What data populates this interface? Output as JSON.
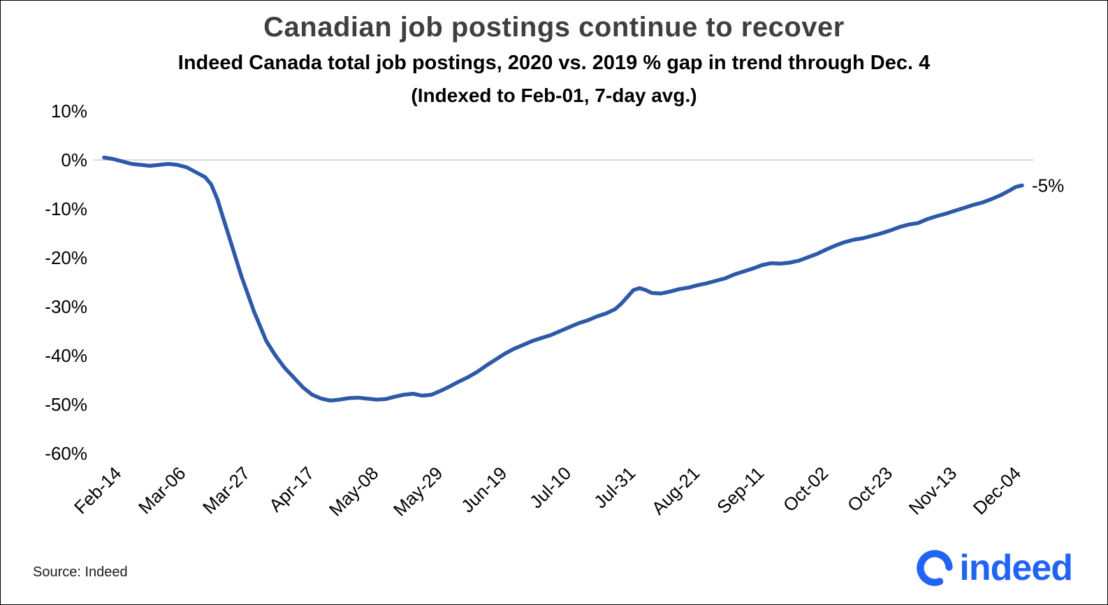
{
  "chart_data": {
    "type": "line",
    "title": "Canadian job postings continue to recover",
    "subtitle": "Indeed Canada total job postings, 2020 vs. 2019 % gap in trend through Dec. 4",
    "subtitle2": "(Indexed to Feb-01, 7-day avg.)",
    "xlabel": "",
    "ylabel": "",
    "ylim": [
      -60,
      10
    ],
    "grid": "zero-line-only",
    "legend": "none",
    "y_tick_labels": [
      "10%",
      "0%",
      "-10%",
      "-20%",
      "-30%",
      "-40%",
      "-50%",
      "-60%"
    ],
    "y_tick_values": [
      10,
      0,
      -10,
      -20,
      -30,
      -40,
      -50,
      -60
    ],
    "x_tick_labels": [
      "Feb-14",
      "Mar-06",
      "Mar-27",
      "Apr-17",
      "May-08",
      "May-29",
      "Jun-19",
      "Jul-10",
      "Jul-31",
      "Aug-21",
      "Sep-11",
      "Oct-02",
      "Oct-23",
      "Nov-13",
      "Dec-04"
    ],
    "x_tick_days": [
      13,
      34,
      55,
      76,
      97,
      118,
      139,
      160,
      181,
      202,
      223,
      244,
      265,
      286,
      307
    ],
    "x_unit": "days since Feb-01",
    "end_label": "-5%",
    "line_color": "#2d59a8",
    "zero_line_color": "#d9d9d9",
    "series": [
      {
        "name": "Total job postings, 2020 vs. 2019 % gap in trend, 7-day avg.",
        "points": [
          [
            7,
            0.5
          ],
          [
            10,
            0.2
          ],
          [
            13,
            -0.3
          ],
          [
            16,
            -0.8
          ],
          [
            19,
            -1.0
          ],
          [
            22,
            -1.2
          ],
          [
            25,
            -1.0
          ],
          [
            28,
            -0.8
          ],
          [
            31,
            -1.0
          ],
          [
            34,
            -1.5
          ],
          [
            37,
            -2.5
          ],
          [
            40,
            -3.5
          ],
          [
            42,
            -5
          ],
          [
            44,
            -8
          ],
          [
            46,
            -12
          ],
          [
            48,
            -16
          ],
          [
            50,
            -20
          ],
          [
            52,
            -24
          ],
          [
            54,
            -27.5
          ],
          [
            56,
            -31
          ],
          [
            58,
            -34
          ],
          [
            60,
            -37
          ],
          [
            63,
            -40
          ],
          [
            66,
            -42.5
          ],
          [
            69,
            -44.5
          ],
          [
            72,
            -46.5
          ],
          [
            75,
            -48
          ],
          [
            78,
            -48.8
          ],
          [
            81,
            -49.2
          ],
          [
            84,
            -49
          ],
          [
            87,
            -48.7
          ],
          [
            90,
            -48.6
          ],
          [
            93,
            -48.8
          ],
          [
            96,
            -49
          ],
          [
            99,
            -48.9
          ],
          [
            102,
            -48.4
          ],
          [
            105,
            -48
          ],
          [
            108,
            -47.8
          ],
          [
            111,
            -48.2
          ],
          [
            114,
            -48
          ],
          [
            117,
            -47.2
          ],
          [
            120,
            -46.3
          ],
          [
            123,
            -45.3
          ],
          [
            126,
            -44.4
          ],
          [
            129,
            -43.3
          ],
          [
            132,
            -42
          ],
          [
            135,
            -40.8
          ],
          [
            138,
            -39.6
          ],
          [
            141,
            -38.6
          ],
          [
            144,
            -37.8
          ],
          [
            147,
            -37
          ],
          [
            150,
            -36.4
          ],
          [
            153,
            -35.8
          ],
          [
            156,
            -35
          ],
          [
            159,
            -34.2
          ],
          [
            162,
            -33.4
          ],
          [
            165,
            -32.8
          ],
          [
            168,
            -32
          ],
          [
            171,
            -31.4
          ],
          [
            174,
            -30.5
          ],
          [
            176,
            -29.4
          ],
          [
            178,
            -28
          ],
          [
            180,
            -26.6
          ],
          [
            182,
            -26.2
          ],
          [
            184,
            -26.6
          ],
          [
            186,
            -27.2
          ],
          [
            189,
            -27.3
          ],
          [
            192,
            -26.9
          ],
          [
            195,
            -26.4
          ],
          [
            198,
            -26.1
          ],
          [
            201,
            -25.6
          ],
          [
            204,
            -25.2
          ],
          [
            207,
            -24.7
          ],
          [
            210,
            -24.2
          ],
          [
            213,
            -23.4
          ],
          [
            216,
            -22.8
          ],
          [
            219,
            -22.2
          ],
          [
            222,
            -21.5
          ],
          [
            225,
            -21.1
          ],
          [
            228,
            -21.2
          ],
          [
            231,
            -21
          ],
          [
            234,
            -20.6
          ],
          [
            237,
            -19.9
          ],
          [
            240,
            -19.2
          ],
          [
            243,
            -18.3
          ],
          [
            246,
            -17.5
          ],
          [
            249,
            -16.8
          ],
          [
            252,
            -16.3
          ],
          [
            255,
            -16
          ],
          [
            258,
            -15.5
          ],
          [
            261,
            -15
          ],
          [
            264,
            -14.4
          ],
          [
            267,
            -13.7
          ],
          [
            270,
            -13.2
          ],
          [
            273,
            -12.9
          ],
          [
            276,
            -12.1
          ],
          [
            279,
            -11.5
          ],
          [
            282,
            -11
          ],
          [
            285,
            -10.4
          ],
          [
            288,
            -9.8
          ],
          [
            291,
            -9.2
          ],
          [
            294,
            -8.7
          ],
          [
            297,
            -8
          ],
          [
            300,
            -7.2
          ],
          [
            303,
            -6.2
          ],
          [
            305,
            -5.5
          ],
          [
            307,
            -5.2
          ]
        ]
      }
    ]
  },
  "footer": {
    "source": "Source: Indeed",
    "logo_text": "indeed",
    "logo_color": "#2164f3"
  }
}
